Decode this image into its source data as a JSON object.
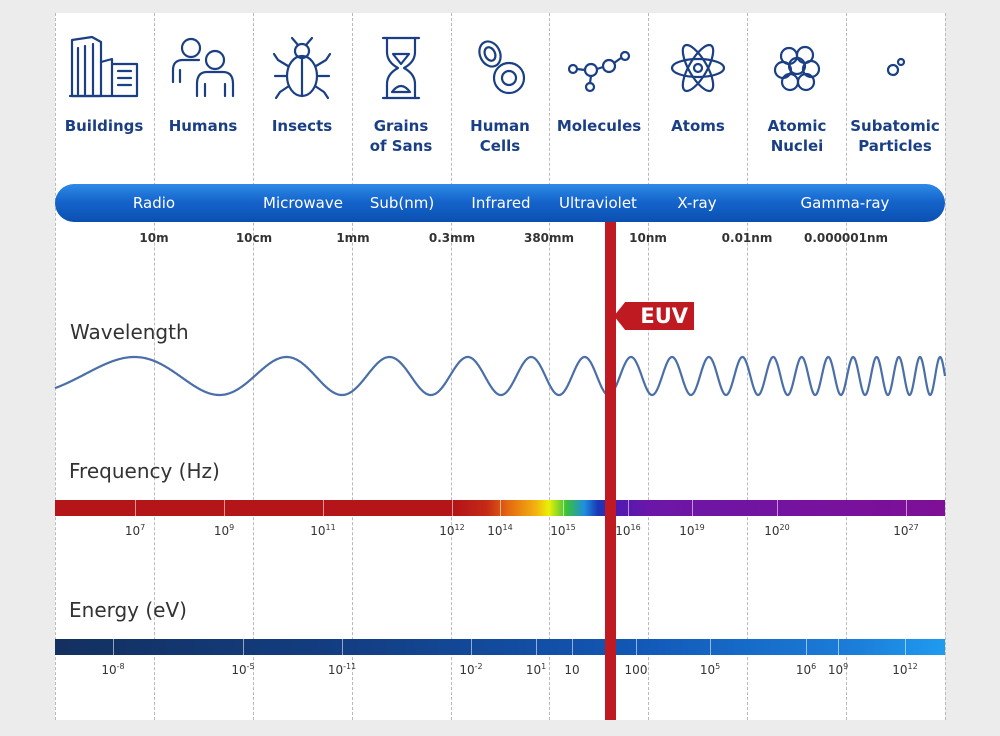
{
  "categories": [
    {
      "label": "Buildings",
      "icon": "buildings-icon"
    },
    {
      "label": "Humans",
      "icon": "humans-icon"
    },
    {
      "label": "Insects",
      "icon": "insect-icon"
    },
    {
      "label": "Grains\nof Sans",
      "icon": "hourglass-icon"
    },
    {
      "label": "Human\nCells",
      "icon": "cells-icon"
    },
    {
      "label": "Molecules",
      "icon": "molecule-icon"
    },
    {
      "label": "Atoms",
      "icon": "atom-icon"
    },
    {
      "label": "Atomic\nNuclei",
      "icon": "nucleus-icon"
    },
    {
      "label": "Subatomic\nParticles",
      "icon": "particles-icon"
    }
  ],
  "bands": [
    "Radio",
    "Microwave",
    "Sub(nm)",
    "Infrared",
    "Ultraviolet",
    "X-ray",
    "Gamma-ray"
  ],
  "wavelength_labels": [
    "10m",
    "10cm",
    "1mm",
    "0.3mm",
    "380mm",
    "10nm",
    "0.01nm",
    "0.000001nm"
  ],
  "sections": {
    "wavelength": "Wavelength",
    "frequency": "Frequency (Hz)",
    "energy": "Energy (eV)"
  },
  "marker": "EUV",
  "frequency_labels": [
    {
      "base": "10",
      "exp": "7"
    },
    {
      "base": "10",
      "exp": "9"
    },
    {
      "base": "10",
      "exp": "11"
    },
    {
      "base": "10",
      "exp": "12"
    },
    {
      "base": "10",
      "exp": "14"
    },
    {
      "base": "10",
      "exp": "15"
    },
    {
      "base": "10",
      "exp": "16"
    },
    {
      "base": "10",
      "exp": "19"
    },
    {
      "base": "10",
      "exp": "20"
    },
    {
      "base": "10",
      "exp": "27"
    }
  ],
  "energy_labels": [
    {
      "base": "10",
      "exp": "-8"
    },
    {
      "base": "10",
      "exp": "-5"
    },
    {
      "base": "10",
      "exp": "-11"
    },
    {
      "base": "10",
      "exp": "-2"
    },
    {
      "base": "10",
      "exp": "1"
    },
    {
      "base": "10",
      "exp": ""
    },
    {
      "base": "100",
      "exp": ""
    },
    {
      "base": "10",
      "exp": "5"
    },
    {
      "base": "10",
      "exp": "6"
    },
    {
      "base": "10",
      "exp": "9"
    },
    {
      "base": "10",
      "exp": "12"
    }
  ],
  "colors": {
    "accent_blue": "#1a3f85",
    "band_bar": "#1565cc",
    "euv_red": "#bf1a22",
    "wave": "#4a6fa8"
  }
}
